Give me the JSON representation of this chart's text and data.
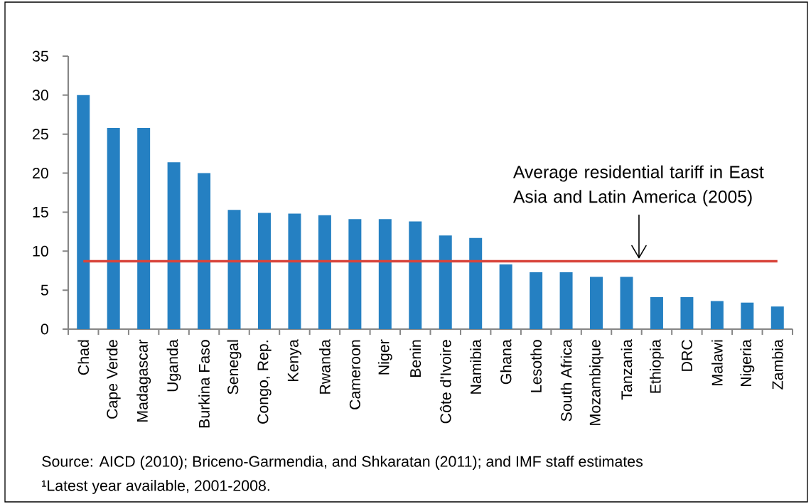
{
  "chart_data": {
    "type": "bar",
    "categories": [
      "Chad",
      "Cape Verde",
      "Madagascar",
      "Uganda",
      "Burkina Faso",
      "Senegal",
      "Congo, Rep.",
      "Kenya",
      "Rwanda",
      "Cameroon",
      "Niger",
      "Benin",
      "Côte d'Ivoire",
      "Namibia",
      "Ghana",
      "Lesotho",
      "South Africa",
      "Mozambique",
      "Tanzania",
      "Ethiopia",
      "DRC",
      "Malawi",
      "Nigeria",
      "Zambia"
    ],
    "values": [
      30,
      25.8,
      25.8,
      21.4,
      20,
      15.3,
      14.9,
      14.8,
      14.6,
      14.1,
      14.1,
      13.8,
      12,
      11.7,
      8.3,
      7.3,
      7.3,
      6.7,
      6.7,
      4.1,
      4.1,
      3.6,
      3.4,
      2.9
    ],
    "color": "#2580c2",
    "ylim": [
      0,
      35
    ],
    "yticks": [
      0,
      5,
      10,
      15,
      20,
      25,
      30,
      35
    ],
    "ref_lines": [
      {
        "axis": "y",
        "value": 8.7,
        "label": "Average residential tariff in East Asia and Latin America (2005)",
        "color": "#d8453c"
      }
    ],
    "annotations": [
      "Source: AICD (2010); Briceno-Garmendia, and Shkaratan (2011); and IMF staff estimates",
      "¹Latest year available, 2001-2008."
    ]
  }
}
